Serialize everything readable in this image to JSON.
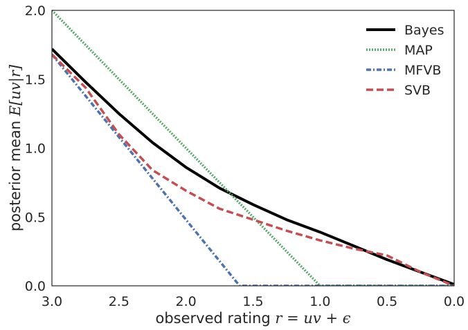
{
  "chart_data": {
    "type": "line",
    "xlabel": "observed rating ",
    "xlabel_math": "r = uv + ϵ",
    "ylabel": "posterior mean ",
    "ylabel_math": "E[uv|r]",
    "xlim": [
      3.0,
      0.0
    ],
    "ylim": [
      0.0,
      2.0
    ],
    "x_ticks": [
      3.0,
      2.5,
      2.0,
      1.5,
      1.0,
      0.5,
      0.0
    ],
    "x_tick_labels": [
      "3.0",
      "2.5",
      "2.0",
      "1.5",
      "1.0",
      "0.5",
      "0.0"
    ],
    "y_ticks": [
      0.0,
      0.5,
      1.0,
      1.5,
      2.0
    ],
    "y_tick_labels": [
      "0.0",
      "0.5",
      "1.0",
      "1.5",
      "2.0"
    ],
    "grid": false,
    "legend_position": "top-right",
    "series": [
      {
        "name": "Bayes",
        "color": "#000000",
        "style": "solid",
        "x": [
          3.0,
          2.75,
          2.5,
          2.25,
          2.0,
          1.75,
          1.5,
          1.25,
          1.0,
          0.75,
          0.5,
          0.25,
          0.0
        ],
        "y": [
          1.72,
          1.48,
          1.25,
          1.04,
          0.86,
          0.71,
          0.59,
          0.48,
          0.39,
          0.29,
          0.19,
          0.1,
          0.01
        ]
      },
      {
        "name": "MAP",
        "color": "#55a868",
        "style": "dotted",
        "x": [
          3.0,
          1.0,
          0.0
        ],
        "y": [
          2.0,
          0.0,
          0.0
        ]
      },
      {
        "name": "MFVB",
        "color": "#4c72b0",
        "style": "dashdot",
        "x": [
          3.0,
          1.6,
          0.0
        ],
        "y": [
          1.68,
          0.0,
          0.0
        ]
      },
      {
        "name": "SVB",
        "color": "#c44e52",
        "style": "dashed",
        "x": [
          3.0,
          2.75,
          2.5,
          2.25,
          2.0,
          1.75,
          1.5,
          1.25,
          1.0,
          0.75,
          0.5,
          0.25,
          0.0
        ],
        "y": [
          1.68,
          1.44,
          1.1,
          0.84,
          0.69,
          0.56,
          0.48,
          0.4,
          0.33,
          0.27,
          0.22,
          0.1,
          0.0
        ]
      }
    ]
  }
}
